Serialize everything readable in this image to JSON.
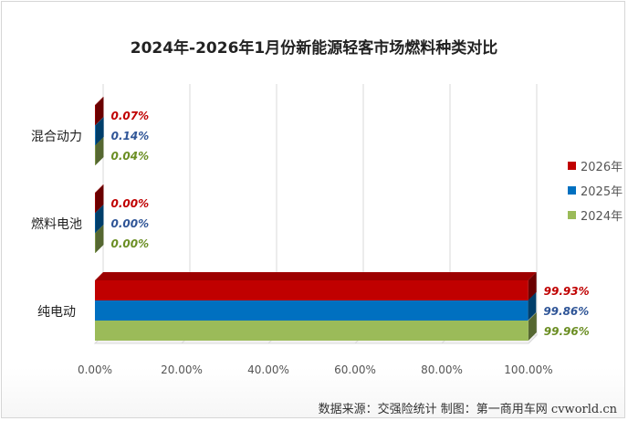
{
  "chart_data": {
    "type": "bar",
    "orientation": "horizontal",
    "style": "3d-clustered",
    "title": "2024年-2026年1月份新能源轻客市场燃料种类对比",
    "categories": [
      "混合动力",
      "燃料电池",
      "纯电动"
    ],
    "series": [
      {
        "name": "2026年",
        "color": "#c00000",
        "values": [
          0.07,
          0.0,
          99.93
        ],
        "labels": [
          "0.07%",
          "0.00%",
          "99.93%"
        ],
        "label_color": "#c00000"
      },
      {
        "name": "2025年",
        "color": "#0070c0",
        "values": [
          0.14,
          0.0,
          99.86
        ],
        "labels": [
          "0.14%",
          "0.00%",
          "99.86%"
        ],
        "label_color": "#2f5597"
      },
      {
        "name": "2024年",
        "color": "#9bbb59",
        "values": [
          0.04,
          0.0,
          99.96
        ],
        "labels": [
          "0.04%",
          "0.00%",
          "99.96%"
        ],
        "label_color": "#6b8e23"
      }
    ],
    "x_ticks": [
      "0.00%",
      "20.00%",
      "40.00%",
      "60.00%",
      "80.00%",
      "100.00%"
    ],
    "xlim": [
      0,
      100
    ],
    "grid": true,
    "legend_position": "right"
  },
  "source_note": "数据来源：交强险统计 制图：第一商用车网 cvworld.cn"
}
